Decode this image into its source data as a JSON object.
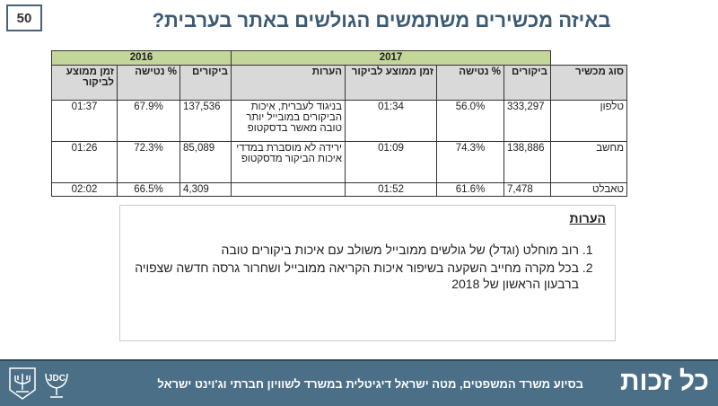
{
  "page_number": "50",
  "title": "באיזה מכשירים משתמשים הגולשים באתר בערבית?",
  "table": {
    "years": [
      "2017",
      "2016"
    ],
    "headers": [
      "סוג מכשיר",
      "ביקורים",
      "% נטישה",
      "זמן ממוצע לביקור",
      "הערות",
      "ביקורים",
      "% נטישה",
      "זמן ממוצע לביקור"
    ],
    "rows": [
      [
        "טלפון",
        "333,297",
        "56.0%",
        "01:34",
        "בניגוד לעברית, איכות הביקורים במובייל יותר טובה מאשר בדסקטופ",
        "137,536",
        "67.9%",
        "01:37"
      ],
      [
        "מחשב",
        "138,886",
        "74.3%",
        "01:09",
        "ירידה לא מוסברת במדדי איכות הביקור מדסקטופ",
        "85,089",
        "72.3%",
        "01:26"
      ],
      [
        "טאבלט",
        "7,478",
        "61.6%",
        "01:52",
        "",
        "4,309",
        "66.5%",
        "02:02"
      ]
    ]
  },
  "notes": {
    "title": "הערות",
    "items": [
      "רוב מוחלט (וגדל) של גולשים ממובייל משולב עם איכות ביקורים טובה",
      "בכל מקרה מחייב השקעה בשיפור איכות הקריאה ממובייל ושחרור גרסה חדשה שצפויה ברבעון הראשון של 2018"
    ]
  },
  "footer": {
    "text": "בסיוע משרד המשפטים, מטה ישראל דיגיטלית במשרד לשוויון חברתי וג'וינט ישראל",
    "brand": "כל זכות",
    "jdc_logo": "JDC",
    "logos": [
      "menorah-emblem",
      "jdc-logo"
    ]
  }
}
